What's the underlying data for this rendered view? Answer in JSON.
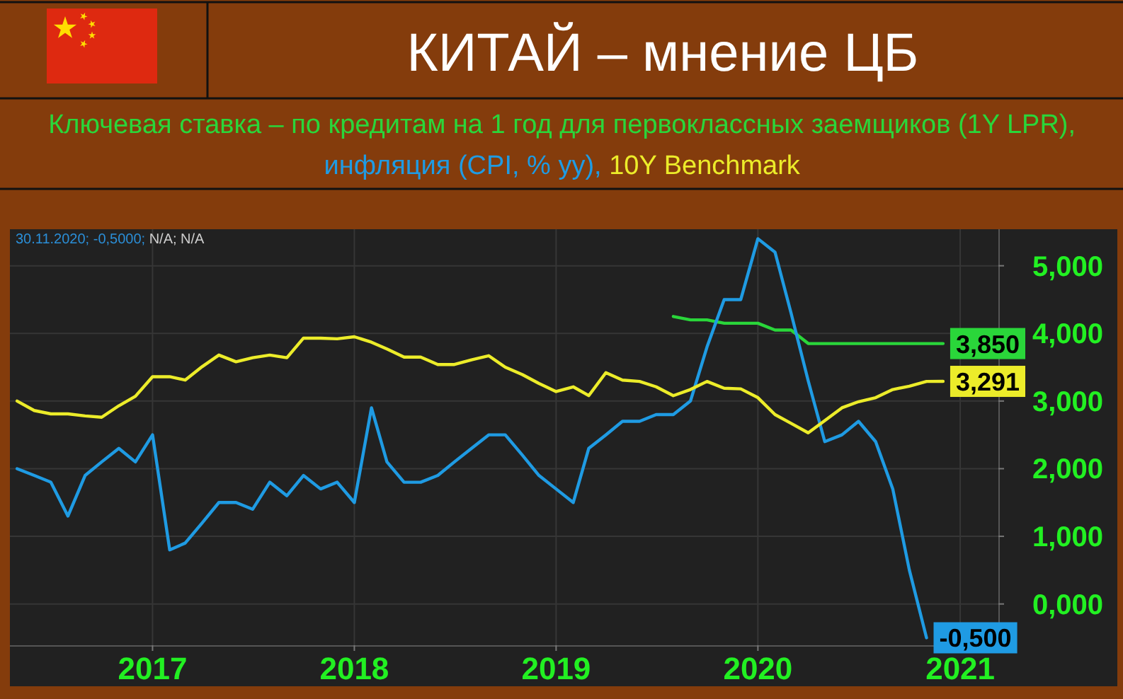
{
  "chart_data": {
    "type": "line",
    "title": "КИТАЙ – мнение ЦБ",
    "annotations": [
      "30.11.2020; -0,5000;",
      "N/A; N/A"
    ],
    "x": [
      "2016-05",
      "2016-06",
      "2016-07",
      "2016-08",
      "2016-09",
      "2016-10",
      "2016-11",
      "2016-12",
      "2017-01",
      "2017-02",
      "2017-03",
      "2017-04",
      "2017-05",
      "2017-06",
      "2017-07",
      "2017-08",
      "2017-09",
      "2017-10",
      "2017-11",
      "2017-12",
      "2018-01",
      "2018-02",
      "2018-03",
      "2018-04",
      "2018-05",
      "2018-06",
      "2018-07",
      "2018-08",
      "2018-09",
      "2018-10",
      "2018-11",
      "2018-12",
      "2019-01",
      "2019-02",
      "2019-03",
      "2019-04",
      "2019-05",
      "2019-06",
      "2019-07",
      "2019-08",
      "2019-09",
      "2019-10",
      "2019-11",
      "2019-12",
      "2020-01",
      "2020-02",
      "2020-03",
      "2020-04",
      "2020-05",
      "2020-06",
      "2020-07",
      "2020-08",
      "2020-09",
      "2020-10",
      "2020-11",
      "2020-12"
    ],
    "xlim": [
      "2016-04-18",
      "2021-03-11"
    ],
    "xticks": [
      {
        "value": "2017",
        "label": "2017"
      },
      {
        "value": "2018",
        "label": "2018"
      },
      {
        "value": "2019",
        "label": "2019"
      },
      {
        "value": "2020",
        "label": "2020"
      },
      {
        "value": "2021",
        "label": "2021"
      }
    ],
    "ylim": [
      -0.61,
      5.54
    ],
    "yticks": [
      {
        "value": 0,
        "label": "0,000"
      },
      {
        "value": 1,
        "label": "1,000"
      },
      {
        "value": 2,
        "label": "2,000"
      },
      {
        "value": 3,
        "label": "3,000"
      },
      {
        "value": 4,
        "label": "4,000"
      },
      {
        "value": 5,
        "label": "5,000"
      }
    ],
    "grid": true,
    "legend": "top",
    "series": [
      {
        "name": "Ключевая ставка – по кредитам на 1 год для первоклассных заемщиков (1Y LPR),",
        "color": "#2ad63a",
        "values": [
          null,
          null,
          null,
          null,
          null,
          null,
          null,
          null,
          null,
          null,
          null,
          null,
          null,
          null,
          null,
          null,
          null,
          null,
          null,
          null,
          null,
          null,
          null,
          null,
          null,
          null,
          null,
          null,
          null,
          null,
          null,
          null,
          null,
          null,
          null,
          null,
          null,
          null,
          null,
          4.25,
          4.2,
          4.2,
          4.15,
          4.15,
          4.15,
          4.05,
          4.05,
          3.85,
          3.85,
          3.85,
          3.85,
          3.85,
          3.85,
          3.85,
          3.85,
          3.85
        ],
        "value_labels": [
          null,
          null,
          null,
          null,
          null,
          null,
          null,
          null,
          null,
          null,
          null,
          null,
          null,
          null,
          null,
          null,
          null,
          null,
          null,
          null,
          null,
          null,
          null,
          null,
          null,
          null,
          null,
          null,
          null,
          null,
          null,
          null,
          null,
          null,
          null,
          null,
          null,
          null,
          null,
          null,
          null,
          null,
          null,
          null,
          null,
          null,
          null,
          null,
          null,
          null,
          null,
          null,
          null,
          null,
          null,
          "3,850"
        ]
      },
      {
        "name": "инфляция (CPI, % yy),",
        "color": "#1f9be3",
        "values": [
          2.0,
          1.9,
          1.8,
          1.3,
          1.9,
          2.1,
          2.3,
          2.1,
          2.5,
          0.8,
          0.9,
          1.2,
          1.5,
          1.5,
          1.4,
          1.8,
          1.6,
          1.9,
          1.7,
          1.8,
          1.5,
          2.9,
          2.1,
          1.8,
          1.8,
          1.9,
          2.1,
          2.3,
          2.5,
          2.5,
          2.2,
          1.9,
          1.7,
          1.5,
          2.3,
          2.5,
          2.7,
          2.7,
          2.8,
          2.8,
          3.0,
          3.8,
          4.5,
          4.5,
          5.4,
          5.2,
          4.3,
          3.3,
          2.4,
          2.5,
          2.7,
          2.4,
          1.7,
          0.5,
          -0.5,
          null
        ],
        "value_labels": [
          null,
          null,
          null,
          null,
          null,
          null,
          null,
          null,
          null,
          null,
          null,
          null,
          null,
          null,
          null,
          null,
          null,
          null,
          null,
          null,
          null,
          null,
          null,
          null,
          null,
          null,
          null,
          null,
          null,
          null,
          null,
          null,
          null,
          null,
          null,
          null,
          null,
          null,
          null,
          null,
          null,
          null,
          null,
          null,
          null,
          null,
          null,
          null,
          null,
          null,
          null,
          null,
          null,
          null,
          "-0,500",
          null
        ]
      },
      {
        "name": "10Y Benchmark",
        "color": "#ecec2a",
        "values": [
          3.0,
          2.86,
          2.81,
          2.81,
          2.78,
          2.76,
          2.93,
          3.07,
          3.36,
          3.36,
          3.31,
          3.51,
          3.68,
          3.58,
          3.64,
          3.68,
          3.64,
          3.93,
          3.93,
          3.92,
          3.95,
          3.87,
          3.77,
          3.65,
          3.65,
          3.54,
          3.54,
          3.61,
          3.67,
          3.5,
          3.39,
          3.26,
          3.14,
          3.21,
          3.08,
          3.42,
          3.31,
          3.29,
          3.21,
          3.08,
          3.17,
          3.29,
          3.19,
          3.18,
          3.05,
          2.8,
          2.67,
          2.53,
          2.71,
          2.9,
          2.99,
          3.05,
          3.17,
          3.22,
          3.29,
          3.291
        ],
        "value_labels": [
          null,
          null,
          null,
          null,
          null,
          null,
          null,
          null,
          null,
          null,
          null,
          null,
          null,
          null,
          null,
          null,
          null,
          null,
          null,
          null,
          null,
          null,
          null,
          null,
          null,
          null,
          null,
          null,
          null,
          null,
          null,
          null,
          null,
          null,
          null,
          null,
          null,
          null,
          null,
          null,
          null,
          null,
          null,
          null,
          null,
          null,
          null,
          null,
          null,
          null,
          null,
          null,
          null,
          null,
          null,
          "3,291"
        ]
      }
    ]
  }
}
